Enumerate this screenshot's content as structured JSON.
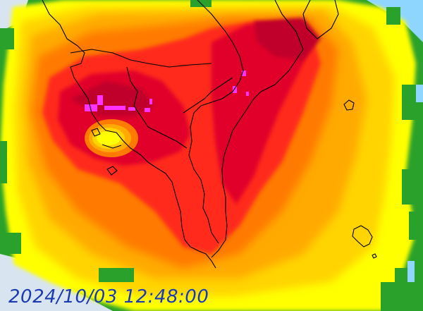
{
  "timestamp": "2024/10/03 12:48:00",
  "colors": {
    "background": "#d8e4ef",
    "echo_weak": "#ffff00",
    "echo_light": "#ffd400",
    "echo_moderate": "#ffaa00",
    "echo_orange": "#ff7a00",
    "echo_heavy": "#ff2a1a",
    "echo_intense": "#e0002a",
    "echo_extreme": "#c0002a",
    "echo_violent": "#ff33ff",
    "echo_fringe_green": "#2aa12a",
    "echo_fringe_cyan": "#8fd6ff",
    "coastline": "#000000",
    "timestamp_text": "#1a3ab0"
  },
  "features": {
    "typhoon_eye": "circle",
    "coastline": "taiwan-and-islands"
  }
}
